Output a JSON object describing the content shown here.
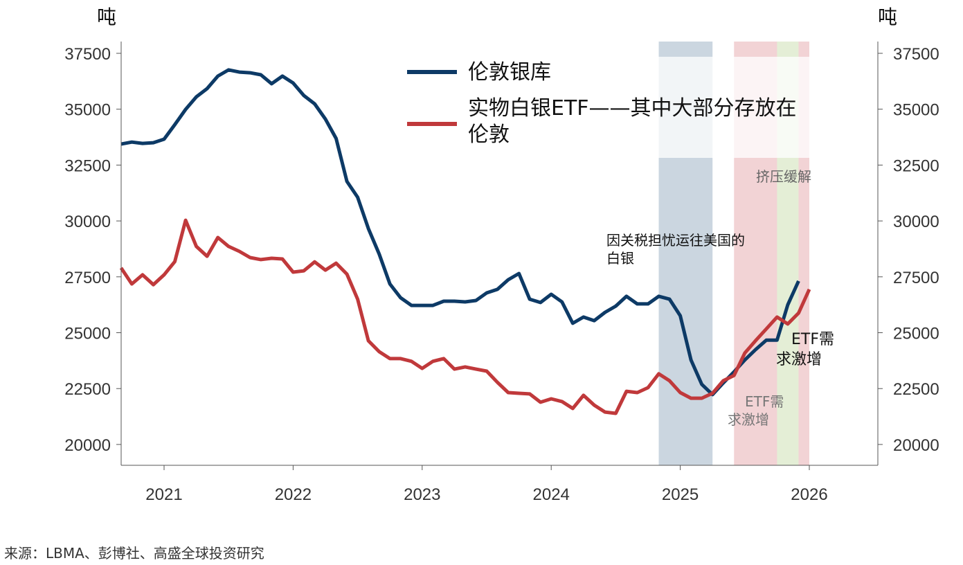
{
  "chart_data": {
    "type": "line",
    "y_unit_left": "吨",
    "y_unit_right": "吨",
    "ylim": [
      19000,
      38000
    ],
    "yticks": [
      20000,
      22500,
      25000,
      27500,
      30000,
      32500,
      35000,
      37500
    ],
    "xlim": [
      "2020-09",
      "2026-11"
    ],
    "xticks": [
      "2021",
      "2022",
      "2023",
      "2024",
      "2025",
      "2026"
    ],
    "grid": false,
    "legend_position": "top-center",
    "dates": [
      "2020-09",
      "2020-10",
      "2020-11",
      "2020-12",
      "2021-01",
      "2021-02",
      "2021-03",
      "2021-04",
      "2021-05",
      "2021-06",
      "2021-07",
      "2021-08",
      "2021-09",
      "2021-10",
      "2021-11",
      "2021-12",
      "2022-01",
      "2022-02",
      "2022-03",
      "2022-04",
      "2022-05",
      "2022-06",
      "2022-07",
      "2022-08",
      "2022-09",
      "2022-10",
      "2022-11",
      "2022-12",
      "2023-01",
      "2023-02",
      "2023-03",
      "2023-04",
      "2023-05",
      "2023-06",
      "2023-07",
      "2023-08",
      "2023-09",
      "2023-10",
      "2023-11",
      "2023-12",
      "2024-01",
      "2024-02",
      "2024-03",
      "2024-04",
      "2024-05",
      "2024-06",
      "2024-07",
      "2024-08",
      "2024-09",
      "2024-10",
      "2024-11",
      "2024-12",
      "2025-01",
      "2025-02",
      "2025-03",
      "2025-04",
      "2025-05",
      "2025-06",
      "2025-07",
      "2025-08",
      "2025-09",
      "2025-10",
      "2025-11",
      "2025-12",
      "2026-01"
    ],
    "series": [
      {
        "name": "伦敦银库",
        "color": "#0d3a66",
        "values": [
          33440,
          33530,
          33470,
          33500,
          33660,
          34310,
          34990,
          35550,
          35920,
          36480,
          36760,
          36660,
          36630,
          36540,
          36140,
          36480,
          36170,
          35610,
          35240,
          34560,
          33690,
          31770,
          31060,
          29660,
          28520,
          27180,
          26560,
          26220,
          26220,
          26220,
          26410,
          26410,
          26380,
          26440,
          26780,
          26940,
          27370,
          27650,
          26500,
          26350,
          26720,
          26380,
          25420,
          25700,
          25540,
          25910,
          26190,
          26630,
          26290,
          26290,
          26630,
          26500,
          25760,
          23780,
          22690,
          22230,
          22750,
          23250,
          23780,
          24240,
          24670,
          24670,
          26250,
          27310,
          null
        ]
      },
      {
        "name": "实物白银ETF——其中大部分存放在伦敦",
        "color": "#c0393b",
        "values": [
          27900,
          27180,
          27590,
          27150,
          27590,
          28180,
          30030,
          28860,
          28420,
          29260,
          28860,
          28640,
          28360,
          28270,
          28330,
          28300,
          27710,
          27770,
          28170,
          27800,
          28110,
          27620,
          26500,
          24640,
          24150,
          23840,
          23840,
          23720,
          23400,
          23720,
          23840,
          23370,
          23470,
          23370,
          23280,
          22780,
          22320,
          22290,
          22260,
          21890,
          22040,
          21920,
          21610,
          22200,
          21760,
          21450,
          21390,
          22380,
          22320,
          22540,
          23160,
          22850,
          22320,
          22070,
          22070,
          22290,
          22850,
          23090,
          24090,
          24640,
          25170,
          25700,
          25390,
          25880,
          26940
        ]
      }
    ],
    "shaded_periods": [
      {
        "start": "2024-11",
        "end": "2025-04",
        "color": "#cbd6e0"
      },
      {
        "start": "2025-06",
        "end": "2026-01",
        "color": "#f2d3d5"
      },
      {
        "start": "2025-10",
        "end": "2025-12",
        "color": "#e4eed6"
      }
    ],
    "annotations": [
      {
        "text": "因关税担忧运往美国的",
        "text2": "白银",
        "color": "#111"
      },
      {
        "text": "挤压缓解",
        "color": "#666"
      },
      {
        "text": "ETF需",
        "text2": "求激增",
        "color": "#111"
      },
      {
        "text": "ETF需",
        "text2": "求激增",
        "color": "#777"
      }
    ]
  },
  "source": "来源：LBMA、彭博社、高盛全球投资研究"
}
